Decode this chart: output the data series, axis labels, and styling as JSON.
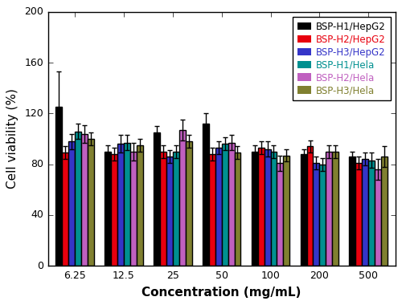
{
  "concentrations": [
    "6.25",
    "12.5",
    "25",
    "50",
    "100",
    "200",
    "500"
  ],
  "series": [
    {
      "label": "BSP-H1/HepG2",
      "color": "#000000",
      "text_color": "#000000",
      "values": [
        125,
        90,
        105,
        112,
        90,
        88,
        86
      ],
      "errors": [
        28,
        5,
        5,
        8,
        5,
        4,
        4
      ]
    },
    {
      "label": "BSP-H2/HepG2",
      "color": "#e8000e",
      "text_color": "#e8000e",
      "values": [
        89,
        88,
        90,
        88,
        93,
        94,
        81
      ],
      "errors": [
        5,
        5,
        5,
        5,
        5,
        5,
        5
      ]
    },
    {
      "label": "BSP-H3/HepG2",
      "color": "#3535c8",
      "text_color": "#3535c8",
      "values": [
        98,
        96,
        86,
        93,
        92,
        81,
        84
      ],
      "errors": [
        6,
        7,
        5,
        5,
        6,
        5,
        5
      ]
    },
    {
      "label": "BSP-H1/Hela",
      "color": "#009090",
      "text_color": "#009090",
      "values": [
        106,
        97,
        90,
        96,
        90,
        80,
        83
      ],
      "errors": [
        6,
        6,
        5,
        5,
        5,
        5,
        6
      ]
    },
    {
      "label": "BSP-H2/Hela",
      "color": "#c060c0",
      "text_color": "#c060c0",
      "values": [
        104,
        90,
        107,
        97,
        81,
        90,
        76
      ],
      "errors": [
        7,
        7,
        8,
        6,
        6,
        5,
        8
      ]
    },
    {
      "label": "BSP-H3/Hela",
      "color": "#808030",
      "text_color": "#808030",
      "values": [
        100,
        95,
        98,
        89,
        87,
        90,
        86
      ],
      "errors": [
        5,
        5,
        5,
        5,
        5,
        5,
        8
      ]
    }
  ],
  "ylabel": "Cell viability (%)",
  "xlabel": "Concentration (mg/mL)",
  "ylim": [
    0,
    200
  ],
  "yticks": [
    0,
    40,
    80,
    120,
    160,
    200
  ],
  "background_color": "#e5e5e5",
  "grid_color": "#ffffff",
  "ylabel_fontsize": 11,
  "xlabel_fontsize": 11,
  "tick_fontsize": 9,
  "legend_fontsize": 8.5
}
